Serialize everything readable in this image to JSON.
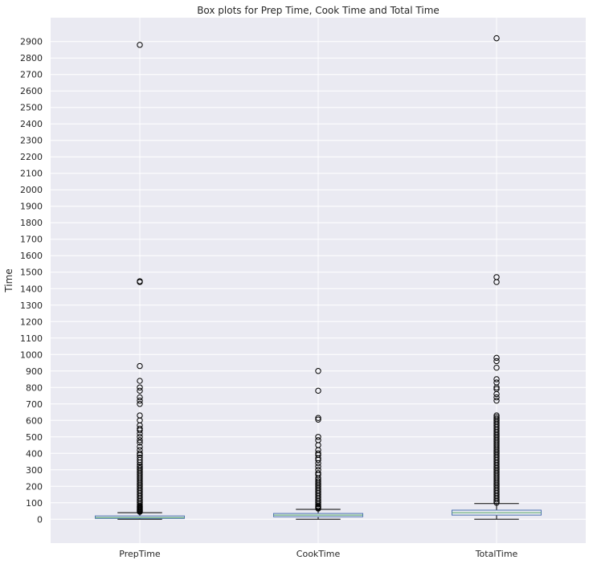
{
  "chart_data": {
    "type": "box",
    "title": "Box plots for Prep Time, Cook Time and Total Time",
    "xlabel": "",
    "ylabel": "Time",
    "ylim": [
      -145,
      3045
    ],
    "yticks": [
      0,
      100,
      200,
      300,
      400,
      500,
      600,
      700,
      800,
      900,
      1000,
      1100,
      1200,
      1300,
      1400,
      1500,
      1600,
      1700,
      1800,
      1900,
      2000,
      2100,
      2200,
      2300,
      2400,
      2500,
      2600,
      2700,
      2800,
      2900
    ],
    "grid": true,
    "categories": [
      "PrepTime",
      "CookTime",
      "TotalTime"
    ],
    "series": [
      {
        "name": "PrepTime",
        "whisker_low": 0,
        "q1": 5,
        "median": 10,
        "q3": 20,
        "whisker_high": 40,
        "outliers": [
          2880,
          1440,
          1445,
          930,
          840,
          800,
          780,
          740,
          720,
          700,
          630,
          600,
          570,
          550,
          540,
          520,
          500,
          480,
          465,
          440,
          420,
          400,
          390,
          375,
          360,
          345,
          330,
          320,
          310,
          300,
          290,
          280,
          270,
          260,
          250,
          240,
          230,
          220,
          210,
          200,
          190,
          180,
          170,
          160,
          150,
          140,
          130,
          120,
          110,
          100,
          90,
          80,
          75,
          70,
          65,
          60,
          55,
          50,
          45
        ]
      },
      {
        "name": "CookTime",
        "whisker_low": 0,
        "q1": 15,
        "median": 25,
        "q3": 35,
        "whisker_high": 60,
        "outliers": [
          900,
          780,
          615,
          605,
          500,
          480,
          450,
          420,
          400,
          390,
          370,
          360,
          340,
          320,
          300,
          280,
          270,
          250,
          240,
          230,
          220,
          210,
          200,
          190,
          180,
          170,
          160,
          150,
          140,
          130,
          120,
          110,
          100,
          90,
          80,
          75,
          70,
          65
        ]
      },
      {
        "name": "TotalTime",
        "whisker_low": 0,
        "q1": 25,
        "median": 40,
        "q3": 55,
        "whisker_high": 95,
        "outliers": [
          2920,
          1470,
          1440,
          980,
          960,
          920,
          850,
          830,
          800,
          790,
          760,
          740,
          720,
          630,
          620,
          610,
          600,
          590,
          580,
          570,
          560,
          550,
          540,
          530,
          520,
          510,
          500,
          490,
          480,
          470,
          460,
          450,
          440,
          430,
          420,
          410,
          400,
          390,
          380,
          370,
          360,
          350,
          340,
          330,
          320,
          310,
          300,
          290,
          280,
          270,
          260,
          250,
          240,
          230,
          220,
          210,
          200,
          190,
          180,
          170,
          160,
          150,
          140,
          130,
          120,
          110,
          100
        ]
      }
    ],
    "colors": {
      "background": "#eaeaf2",
      "grid": "#ffffff",
      "box": "#4c72b0",
      "median": "#55a868",
      "whisker": "#000000",
      "flier": "#000000"
    }
  }
}
